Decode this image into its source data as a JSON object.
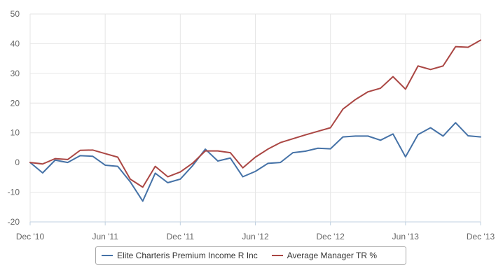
{
  "chart_data": {
    "type": "line",
    "x": [
      "Dec '10",
      "Jan '11",
      "Feb '11",
      "Mar '11",
      "Apr '11",
      "May '11",
      "Jun '11",
      "Jul '11",
      "Aug '11",
      "Sep '11",
      "Oct '11",
      "Nov '11",
      "Dec '11",
      "Jan '12",
      "Feb '12",
      "Mar '12",
      "Apr '12",
      "May '12",
      "Jun '12",
      "Jul '12",
      "Aug '12",
      "Sep '12",
      "Oct '12",
      "Nov '12",
      "Dec '12",
      "Jan '13",
      "Feb '13",
      "Mar '13",
      "Apr '13",
      "May '13",
      "Jun '13",
      "Jul '13",
      "Aug '13",
      "Sep '13",
      "Oct '13",
      "Nov '13",
      "Dec '13"
    ],
    "x_tick_labels": [
      "Dec '10",
      "Jun '11",
      "Dec '11",
      "Jun '12",
      "Dec '12",
      "Jun '13",
      "Dec '13"
    ],
    "y_tick_labels": [
      "-20",
      "-10",
      "0",
      "10",
      "20",
      "30",
      "40",
      "50"
    ],
    "ylim": [
      -20,
      50
    ],
    "y_ticks": [
      -20,
      -10,
      0,
      10,
      20,
      30,
      40,
      50
    ],
    "grid": true,
    "legend_position": "bottom",
    "series": [
      {
        "name": "Elite Charteris Premium Income R Inc",
        "color": "#4572a7",
        "values": [
          0,
          -3.5,
          0.8,
          0,
          2.3,
          2.1,
          -0.9,
          -1.3,
          -6.5,
          -13,
          -3.6,
          -6.8,
          -5.6,
          -1,
          4.5,
          0.5,
          1.5,
          -4.8,
          -3,
          -0.3,
          0,
          3.3,
          3.8,
          4.8,
          4.6,
          8.6,
          8.9,
          8.9,
          7.5,
          9.6,
          1.9,
          9.4,
          11.7,
          8.9,
          13.4,
          9,
          8.6
        ]
      },
      {
        "name": "Average Manager TR %",
        "color": "#aa4643",
        "values": [
          0,
          -0.5,
          1.3,
          1,
          4.1,
          4.2,
          3,
          1.8,
          -5.6,
          -8.3,
          -1.3,
          -4.8,
          -3.2,
          -0.2,
          3.9,
          3.9,
          3.3,
          -1.8,
          1.8,
          4.5,
          6.7,
          8,
          9.3,
          10.5,
          11.7,
          18,
          21.2,
          23.8,
          25,
          28.9,
          24.7,
          32.5,
          31.3,
          32.5,
          39,
          38.8,
          41.2
        ]
      }
    ]
  }
}
